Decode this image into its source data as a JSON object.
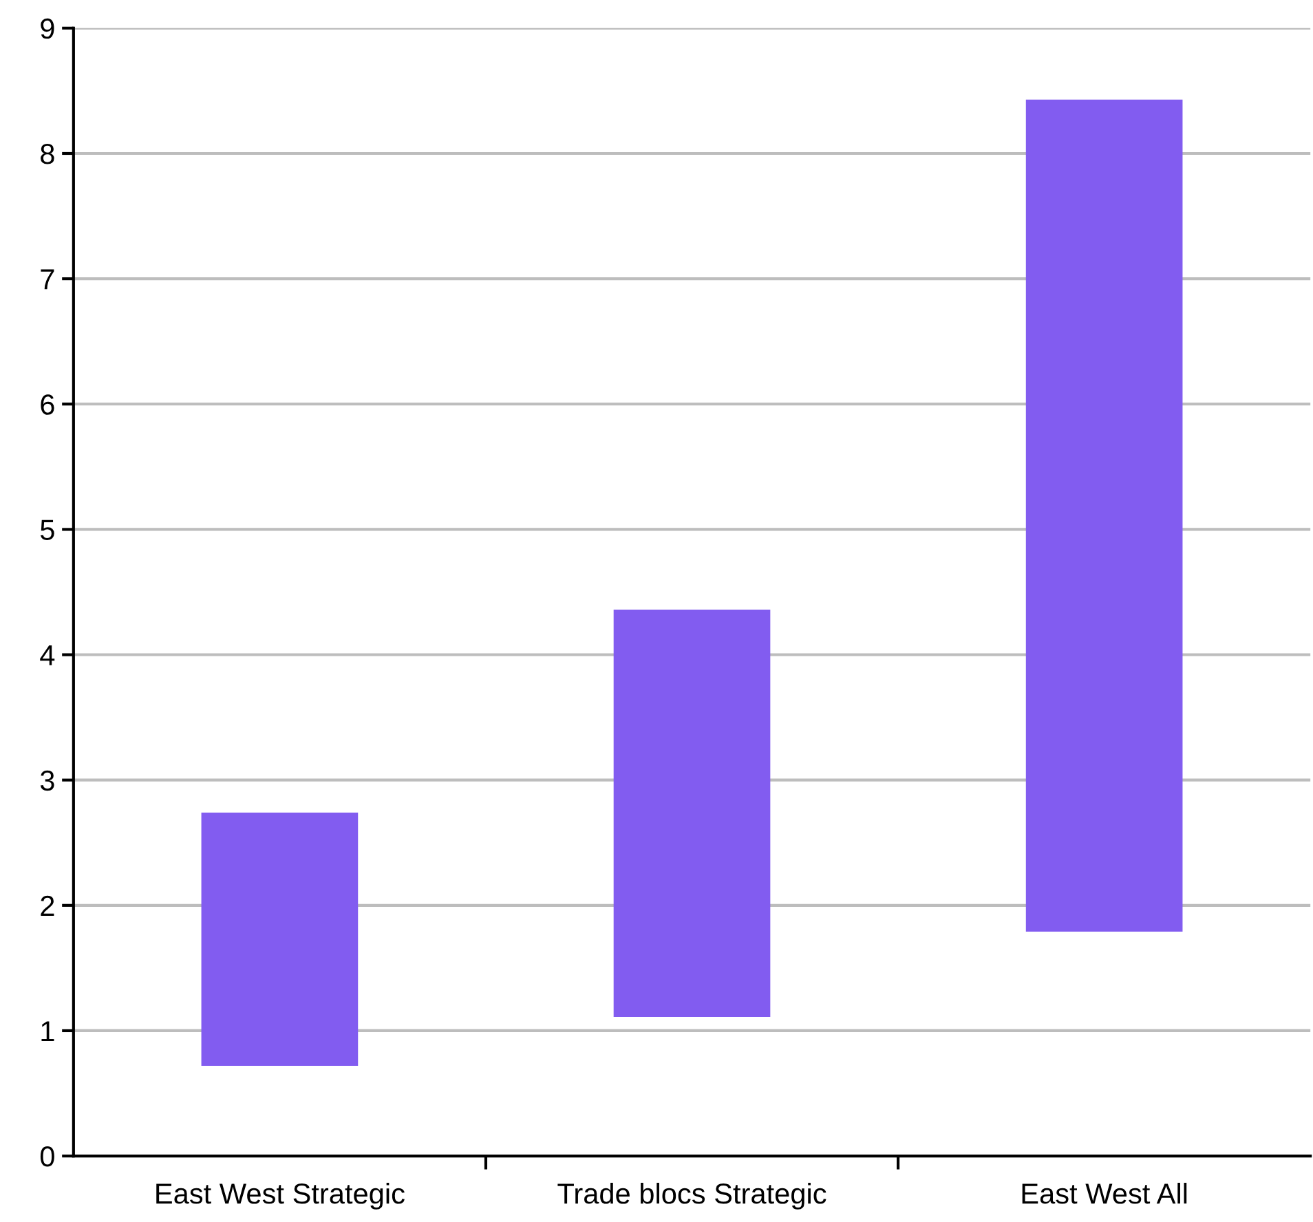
{
  "chart_data": {
    "type": "bar",
    "categories": [
      "East West Strategic",
      "Trade blocs Strategic",
      "East West All"
    ],
    "values": [
      2.02,
      3.25,
      6.64
    ],
    "base": [
      0.72,
      1.11,
      1.79
    ],
    "color": "#825cf0",
    "ylim": [
      0,
      9
    ],
    "yticks": [
      0,
      1,
      2,
      3,
      4,
      5,
      6,
      7,
      8,
      9
    ],
    "grid": "y",
    "legend": false
  }
}
